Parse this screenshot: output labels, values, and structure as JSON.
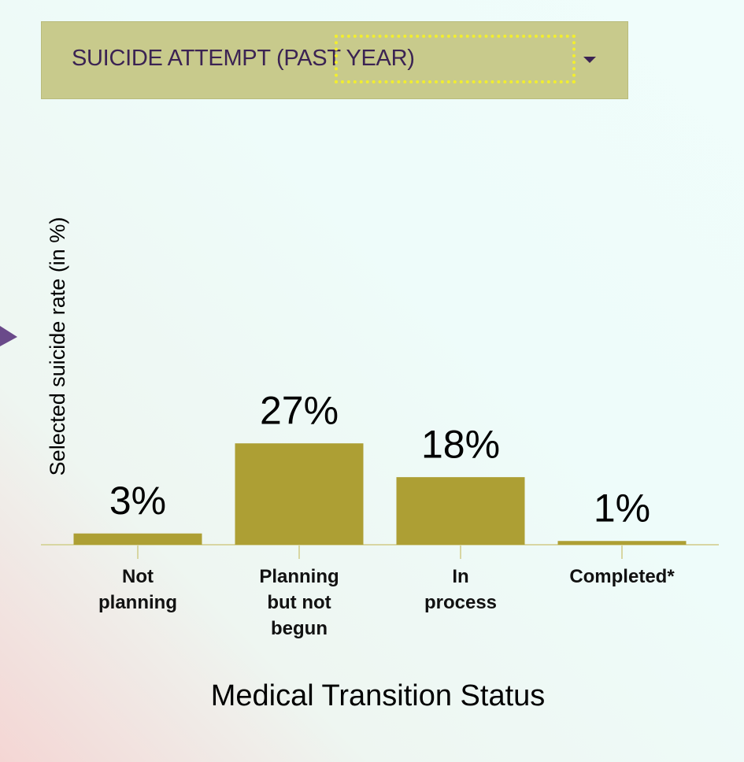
{
  "dropdown": {
    "label": "SUICIDE ATTEMPT (PAST YEAR)"
  },
  "chart_data": {
    "type": "bar",
    "y_axis_label": "Selected suicide rate (in %)",
    "x_axis_label": "Medical Transition Status",
    "categories": [
      "Not planning",
      "Planning but not begun",
      "In process",
      "Completed*"
    ],
    "values": [
      3,
      27,
      18,
      1
    ],
    "value_labels": [
      "3%",
      "27%",
      "18%",
      "1%"
    ],
    "color": "#ad9f34",
    "ylim": [
      0,
      100
    ]
  }
}
